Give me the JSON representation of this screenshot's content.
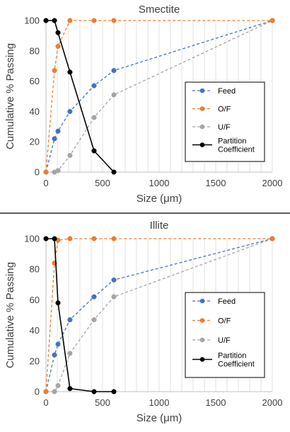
{
  "colors": {
    "feed": "#4472C4",
    "of": "#ED7D31",
    "uf": "#A5A5A5",
    "partition": "#000000",
    "grid": "#D9D9D9",
    "axis": "#BFBFBF",
    "divider": "#000000"
  },
  "chart_data": [
    {
      "type": "line",
      "title": "Smectite",
      "xlabel": "Size (μm)",
      "ylabel": "Cumulative % Passing",
      "xlim": [
        0,
        2000
      ],
      "ylim": [
        0,
        100
      ],
      "xticks": [
        "0",
        "500",
        "1000",
        "1500",
        "2000"
      ],
      "yticks": [
        "0",
        "20",
        "40",
        "60",
        "80",
        "100"
      ],
      "grid": "vertical",
      "legend_position": "right",
      "series": [
        {
          "name": "Feed",
          "key": "feed",
          "style": "dashed",
          "x": [
            0,
            75,
            106,
            212,
            425,
            600,
            2000
          ],
          "y": [
            0,
            22,
            27,
            40,
            57,
            67,
            100
          ]
        },
        {
          "name": "O/F",
          "key": "of",
          "style": "dashed",
          "x": [
            0,
            75,
            106,
            212,
            425,
            600,
            2000
          ],
          "y": [
            0,
            67,
            83,
            100,
            100,
            100,
            100
          ]
        },
        {
          "name": "U/F",
          "key": "uf",
          "style": "dashed",
          "x": [
            0,
            75,
            106,
            212,
            425,
            600,
            2000
          ],
          "y": [
            0,
            0,
            1,
            11,
            36,
            51,
            100
          ]
        },
        {
          "name": "Partition Coefficient",
          "key": "partition",
          "style": "solid",
          "x": [
            0,
            75,
            106,
            212,
            425,
            600
          ],
          "y": [
            100,
            100,
            92,
            66,
            14,
            0
          ]
        }
      ]
    },
    {
      "type": "line",
      "title": "Illite",
      "xlabel": "Size (μm)",
      "ylabel": "Cumulative % Passing",
      "xlim": [
        0,
        2000
      ],
      "ylim": [
        0,
        100
      ],
      "xticks": [
        "0",
        "500",
        "1000",
        "1500",
        "2000"
      ],
      "yticks": [
        "0",
        "20",
        "40",
        "60",
        "80",
        "100"
      ],
      "grid": "vertical",
      "legend_position": "right",
      "series": [
        {
          "name": "Feed",
          "key": "feed",
          "style": "dashed",
          "x": [
            0,
            75,
            106,
            212,
            425,
            600,
            2000
          ],
          "y": [
            0,
            24,
            31,
            47,
            62,
            73,
            100
          ]
        },
        {
          "name": "O/F",
          "key": "of",
          "style": "dashed",
          "x": [
            0,
            75,
            106,
            212,
            425,
            600,
            2000
          ],
          "y": [
            0,
            84,
            99,
            100,
            100,
            100,
            100
          ]
        },
        {
          "name": "U/F",
          "key": "uf",
          "style": "dashed",
          "x": [
            0,
            75,
            106,
            212,
            425,
            600,
            2000
          ],
          "y": [
            0,
            0,
            4,
            25,
            47,
            62,
            100
          ]
        },
        {
          "name": "Partition Coefficient",
          "key": "partition",
          "style": "solid",
          "x": [
            0,
            75,
            106,
            212,
            425,
            600
          ],
          "y": [
            100,
            100,
            58,
            2,
            0,
            0
          ]
        }
      ]
    }
  ]
}
